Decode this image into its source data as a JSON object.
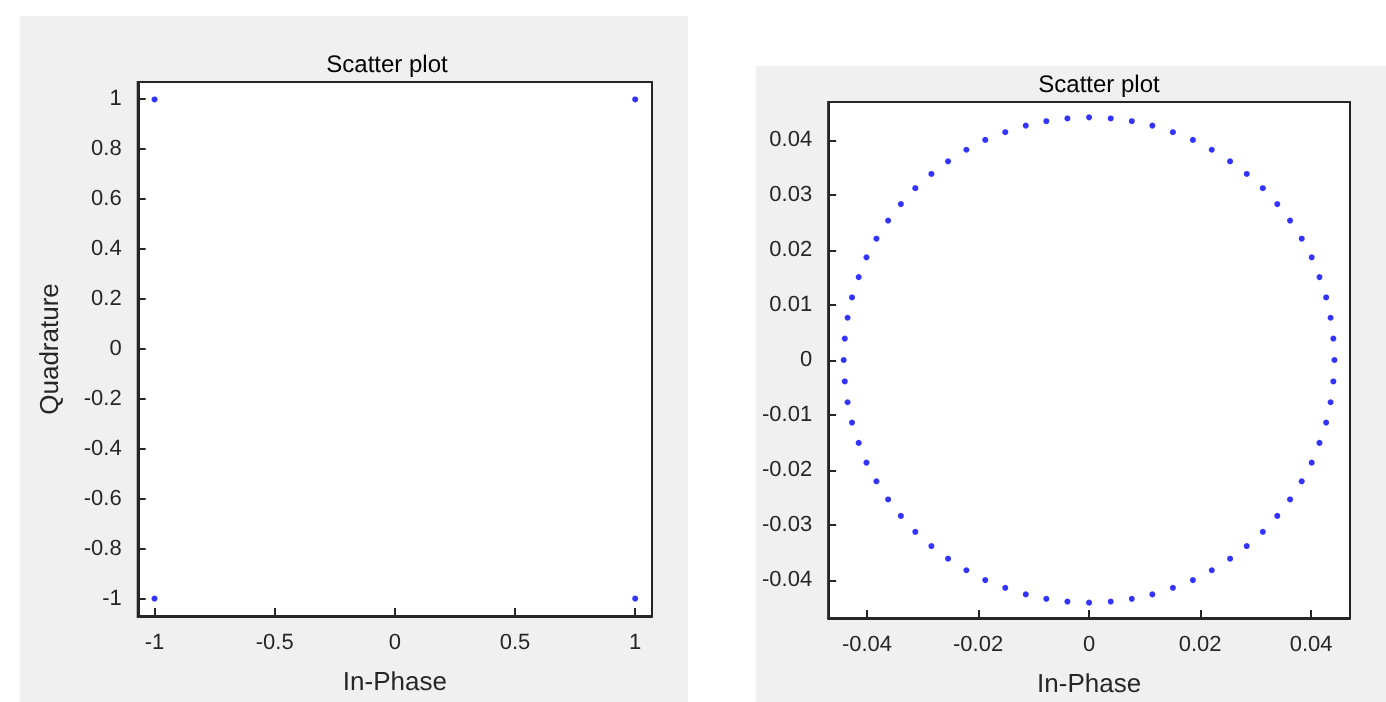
{
  "chart_data": [
    {
      "type": "scatter",
      "title": "Scatter plot",
      "xlabel": "In-Phase",
      "ylabel": "Quadrature",
      "marker": "circle",
      "color": "#0000ff",
      "x": [
        -1,
        -1,
        1,
        1
      ],
      "values": [
        1,
        -1,
        1,
        -1
      ],
      "xlim": [
        -1.07,
        1.07
      ],
      "ylim": [
        -1.07,
        1.07
      ],
      "xticks": [
        -1,
        -0.5,
        0,
        0.5,
        1
      ],
      "yticks": [
        -1,
        -0.8,
        -0.6,
        -0.4,
        -0.2,
        0,
        0.2,
        0.4,
        0.6,
        0.8,
        1
      ]
    },
    {
      "type": "scatter",
      "title": "Scatter plot",
      "xlabel": "In-Phase",
      "marker": "circle",
      "color": "#0000ff",
      "x": [
        0.0442,
        0.044,
        0.0435,
        0.0427,
        0.0415,
        0.0401,
        0.0383,
        0.0362,
        0.0339,
        0.0313,
        0.0284,
        0.0254,
        0.0221,
        0.0187,
        0.0151,
        0.0114,
        0.0077,
        0.0039,
        0,
        -0.0039,
        -0.0077,
        -0.0114,
        -0.0151,
        -0.0187,
        -0.0221,
        -0.0254,
        -0.0284,
        -0.0313,
        -0.0339,
        -0.0362,
        -0.0383,
        -0.0401,
        -0.0415,
        -0.0427,
        -0.0435,
        -0.044,
        -0.0442,
        -0.044,
        -0.0435,
        -0.0427,
        -0.0415,
        -0.0401,
        -0.0383,
        -0.0362,
        -0.0339,
        -0.0313,
        -0.0284,
        -0.0254,
        -0.0221,
        -0.0187,
        -0.0151,
        -0.0114,
        -0.0077,
        -0.0039,
        0,
        0.0039,
        0.0077,
        0.0114,
        0.0151,
        0.0187,
        0.0221,
        0.0254,
        0.0284,
        0.0313,
        0.0339,
        0.0362,
        0.0383,
        0.0401,
        0.0415,
        0.0427,
        0.0435,
        0.044
      ],
      "values": [
        0,
        0.0039,
        0.0077,
        0.0114,
        0.0151,
        0.0187,
        0.0221,
        0.0254,
        0.0284,
        0.0313,
        0.0339,
        0.0362,
        0.0383,
        0.0401,
        0.0415,
        0.0427,
        0.0435,
        0.044,
        0.0442,
        0.044,
        0.0435,
        0.0427,
        0.0415,
        0.0401,
        0.0383,
        0.0362,
        0.0339,
        0.0313,
        0.0284,
        0.0254,
        0.0221,
        0.0187,
        0.0151,
        0.0114,
        0.0077,
        0.0039,
        0,
        -0.0039,
        -0.0077,
        -0.0114,
        -0.0151,
        -0.0187,
        -0.0221,
        -0.0254,
        -0.0284,
        -0.0313,
        -0.0339,
        -0.0362,
        -0.0383,
        -0.0401,
        -0.0415,
        -0.0427,
        -0.0435,
        -0.044,
        -0.0442,
        -0.044,
        -0.0435,
        -0.0427,
        -0.0415,
        -0.0401,
        -0.0383,
        -0.0362,
        -0.0339,
        -0.0313,
        -0.0284,
        -0.0254,
        -0.0221,
        -0.0187,
        -0.0151,
        -0.0114,
        -0.0077,
        -0.0039
      ],
      "xlim": [
        -0.047,
        0.047
      ],
      "ylim": [
        -0.047,
        0.047
      ],
      "xticks": [
        -0.04,
        -0.02,
        0,
        0.02,
        0.04
      ],
      "yticks": [
        -0.04,
        -0.03,
        -0.02,
        -0.01,
        0,
        0.01,
        0.02,
        0.03,
        0.04
      ]
    }
  ]
}
